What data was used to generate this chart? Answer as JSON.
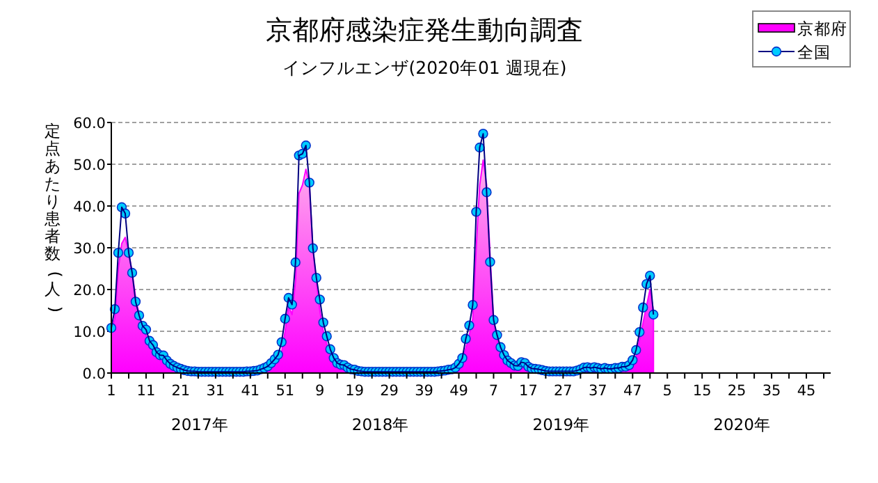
{
  "chart_data": {
    "type": "line",
    "title": "京都府感染症発生動向調査",
    "subtitle": "インフルエンザ(2020年01 週現在)",
    "ylabel": "定点あたり患者数(人)",
    "annotations": [
      "2017年",
      "2018年",
      "2019年",
      "2020年"
    ],
    "categories": [
      "1",
      null,
      null,
      null,
      null,
      null,
      null,
      null,
      null,
      null,
      "11",
      null,
      null,
      null,
      null,
      null,
      null,
      null,
      null,
      null,
      "21",
      null,
      null,
      null,
      null,
      null,
      null,
      null,
      null,
      null,
      "31",
      null,
      null,
      null,
      null,
      null,
      null,
      null,
      null,
      null,
      "41",
      null,
      null,
      null,
      null,
      null,
      null,
      null,
      null,
      null,
      "51",
      null,
      null,
      null,
      null,
      null,
      null,
      null,
      null,
      null,
      "9",
      null,
      null,
      null,
      null,
      null,
      null,
      null,
      null,
      null,
      "19",
      null,
      null,
      null,
      null,
      null,
      null,
      null,
      null,
      null,
      "29",
      null,
      null,
      null,
      null,
      null,
      null,
      null,
      null,
      null,
      "39",
      null,
      null,
      null,
      null,
      null,
      null,
      null,
      null,
      null,
      "49",
      null,
      null,
      null,
      null,
      null,
      null,
      null,
      null,
      null,
      "7",
      null,
      null,
      null,
      null,
      null,
      null,
      null,
      null,
      null,
      "17",
      null,
      null,
      null,
      null,
      null,
      null,
      null,
      null,
      null,
      "27",
      null,
      null,
      null,
      null,
      null,
      null,
      null,
      null,
      null,
      "37",
      null,
      null,
      null,
      null,
      null,
      null,
      null,
      null,
      null,
      "47",
      null,
      null,
      null,
      null,
      null,
      null,
      null,
      null,
      null,
      "5",
      null,
      null,
      null,
      null,
      null,
      null,
      null,
      null,
      null,
      "15",
      null,
      null,
      null,
      null,
      null,
      null,
      null,
      null,
      null,
      "25",
      null,
      null,
      null,
      null,
      null,
      null,
      null,
      null,
      null,
      "35",
      null,
      null,
      null,
      null,
      null,
      null,
      null,
      null,
      null,
      "45",
      null,
      null,
      null,
      null,
      null,
      null,
      null
    ],
    "series": [
      {
        "name": "京都府",
        "type": "area",
        "color": "#ff00ff",
        "values": [
          10.0,
          13.0,
          25.0,
          31.0,
          32.5,
          29.0,
          24.0,
          18.0,
          14.0,
          11.0,
          9.0,
          7.0,
          5.5,
          4.3,
          3.2,
          2.5,
          2.0,
          1.5,
          1.0,
          0.8,
          0.5,
          0.4,
          0.3,
          0.2,
          0.2,
          0.2,
          0.2,
          0.2,
          0.2,
          0.2,
          0.2,
          0.2,
          0.2,
          0.2,
          0.2,
          0.2,
          0.2,
          0.2,
          0.2,
          0.2,
          0.2,
          0.3,
          0.4,
          0.6,
          0.9,
          1.2,
          1.8,
          2.5,
          3.0,
          5.0,
          10.0,
          16.0,
          14.0,
          22.0,
          43.0,
          45.0,
          48.8,
          45.0,
          30.0,
          22.0,
          15.0,
          10.0,
          7.0,
          4.5,
          3.0,
          2.0,
          1.5,
          1.2,
          0.8,
          0.5,
          0.4,
          0.3,
          0.2,
          0.2,
          0.2,
          0.2,
          0.2,
          0.2,
          0.2,
          0.2,
          0.2,
          0.2,
          0.2,
          0.2,
          0.2,
          0.2,
          0.2,
          0.2,
          0.2,
          0.2,
          0.2,
          0.2,
          0.2,
          0.2,
          0.3,
          0.4,
          0.5,
          0.7,
          0.9,
          1.2,
          2.0,
          3.0,
          6.0,
          9.0,
          13.0,
          30.0,
          45.0,
          51.0,
          45.0,
          28.0,
          13.0,
          8.0,
          5.0,
          3.5,
          2.5,
          1.8,
          1.5,
          1.3,
          2.0,
          1.8,
          1.2,
          0.9,
          0.7,
          0.6,
          0.5,
          0.4,
          0.3,
          0.3,
          0.3,
          0.3,
          0.3,
          0.3,
          0.3,
          0.3,
          0.4,
          0.6,
          0.8,
          0.9,
          0.8,
          0.9,
          0.8,
          0.7,
          0.8,
          0.7,
          0.7,
          0.8,
          0.8,
          1.0,
          1.0,
          1.4,
          2.0,
          4.0,
          8.0,
          12.0,
          16.0,
          20.0,
          15.0,
          null,
          null,
          null,
          null,
          null,
          null,
          null,
          null,
          null,
          null,
          null,
          null,
          null,
          null,
          null,
          null,
          null,
          null,
          null,
          null,
          null,
          null,
          null,
          null,
          null,
          null,
          null,
          null,
          null,
          null,
          null,
          null,
          null,
          null,
          null,
          null,
          null,
          null,
          null,
          null,
          null,
          null,
          null,
          null,
          null,
          null,
          null,
          null,
          null,
          null,
          null
        ]
      },
      {
        "name": "全国",
        "marker": "circle",
        "color": "#00ccff",
        "values": [
          10.8,
          15.3,
          28.8,
          39.7,
          38.2,
          28.8,
          24.0,
          17.1,
          13.8,
          11.3,
          10.4,
          7.7,
          6.7,
          5.0,
          4.3,
          4.2,
          3.0,
          2.2,
          1.7,
          1.3,
          1.0,
          0.7,
          0.5,
          0.4,
          0.4,
          0.3,
          0.3,
          0.3,
          0.3,
          0.3,
          0.3,
          0.3,
          0.3,
          0.3,
          0.3,
          0.3,
          0.3,
          0.3,
          0.3,
          0.4,
          0.4,
          0.5,
          0.6,
          0.9,
          1.2,
          1.6,
          2.4,
          3.3,
          4.4,
          7.4,
          13.0,
          18.0,
          16.4,
          26.5,
          52.1,
          52.5,
          54.5,
          45.6,
          29.9,
          22.8,
          17.6,
          12.1,
          8.8,
          5.7,
          3.6,
          2.4,
          2.0,
          1.9,
          1.3,
          0.9,
          0.8,
          0.5,
          0.4,
          0.3,
          0.3,
          0.3,
          0.3,
          0.3,
          0.3,
          0.3,
          0.3,
          0.3,
          0.3,
          0.3,
          0.3,
          0.3,
          0.3,
          0.3,
          0.3,
          0.3,
          0.3,
          0.3,
          0.3,
          0.3,
          0.4,
          0.5,
          0.6,
          0.8,
          0.9,
          1.3,
          2.2,
          3.6,
          8.2,
          11.4,
          16.3,
          38.6,
          54.0,
          57.3,
          43.3,
          26.6,
          12.7,
          9.1,
          6.2,
          4.3,
          3.0,
          2.4,
          1.8,
          1.7,
          2.6,
          2.4,
          1.5,
          1.1,
          1.0,
          0.9,
          0.7,
          0.5,
          0.4,
          0.4,
          0.4,
          0.4,
          0.4,
          0.4,
          0.4,
          0.4,
          0.6,
          0.9,
          1.3,
          1.4,
          1.2,
          1.4,
          1.2,
          1.0,
          1.2,
          1.0,
          1.0,
          1.2,
          1.2,
          1.5,
          1.5,
          1.9,
          3.1,
          5.5,
          9.8,
          15.7,
          21.3,
          23.3,
          14.0,
          null,
          null,
          null,
          null,
          null,
          null,
          null,
          null,
          null,
          null,
          null,
          null,
          null,
          null,
          null,
          null,
          null,
          null,
          null,
          null,
          null,
          null,
          null,
          null,
          null,
          null,
          null,
          null,
          null,
          null,
          null,
          null,
          null,
          null,
          null,
          null,
          null,
          null,
          null,
          null,
          null,
          null,
          null,
          null,
          null,
          null,
          null,
          null,
          null,
          null,
          null
        ]
      }
    ],
    "ylim": [
      0,
      60
    ],
    "yticks": [
      {
        "value": 0,
        "label": "0.0"
      },
      {
        "value": 10,
        "label": "10.0"
      },
      {
        "value": 20,
        "label": "20.0"
      },
      {
        "value": 30,
        "label": "30.0"
      },
      {
        "value": 40,
        "label": "40.0"
      },
      {
        "value": 50,
        "label": "50.0"
      },
      {
        "value": 60,
        "label": "60.0"
      }
    ],
    "grid": "y",
    "legend": "top right"
  }
}
